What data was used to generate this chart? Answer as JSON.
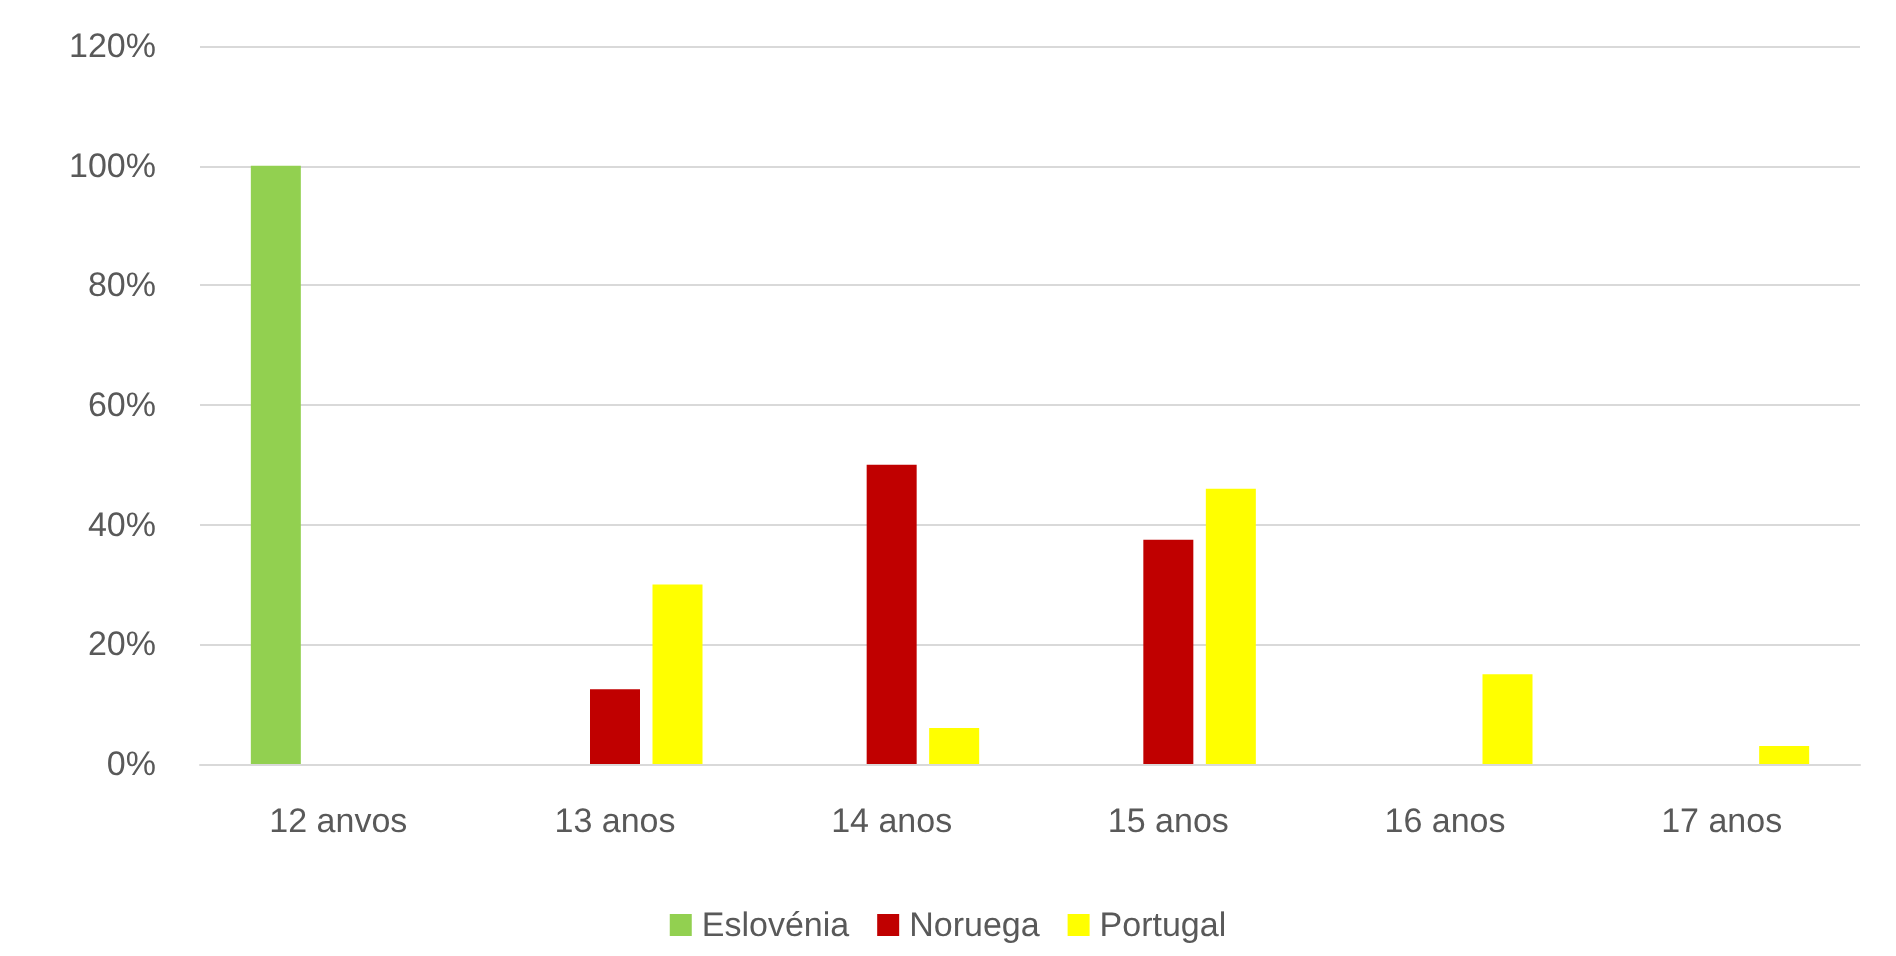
{
  "chart_data": {
    "type": "bar",
    "categories": [
      "12 anvos",
      "13 anos",
      "14 anos",
      "15 anos",
      "16 anos",
      "17 anos"
    ],
    "series": [
      {
        "name": "Eslovénia",
        "color": "#92d050",
        "values": [
          100,
          0,
          0,
          0,
          0,
          0
        ]
      },
      {
        "name": "Noruega",
        "color": "#c00000",
        "values": [
          0,
          12.5,
          50,
          37.5,
          0,
          0
        ]
      },
      {
        "name": "Portugal",
        "color": "#ffff00",
        "values": [
          0,
          30,
          6,
          46,
          15,
          3
        ]
      }
    ],
    "ylim": [
      0,
      120
    ],
    "yticks": [
      {
        "value": 0,
        "label": "0%"
      },
      {
        "value": 20,
        "label": "20%"
      },
      {
        "value": 40,
        "label": "40%"
      },
      {
        "value": 60,
        "label": "60%"
      },
      {
        "value": 80,
        "label": "80%"
      },
      {
        "value": 100,
        "label": "100%"
      },
      {
        "value": 120,
        "label": "120%"
      }
    ],
    "grid": "y",
    "legend": "bottom"
  }
}
